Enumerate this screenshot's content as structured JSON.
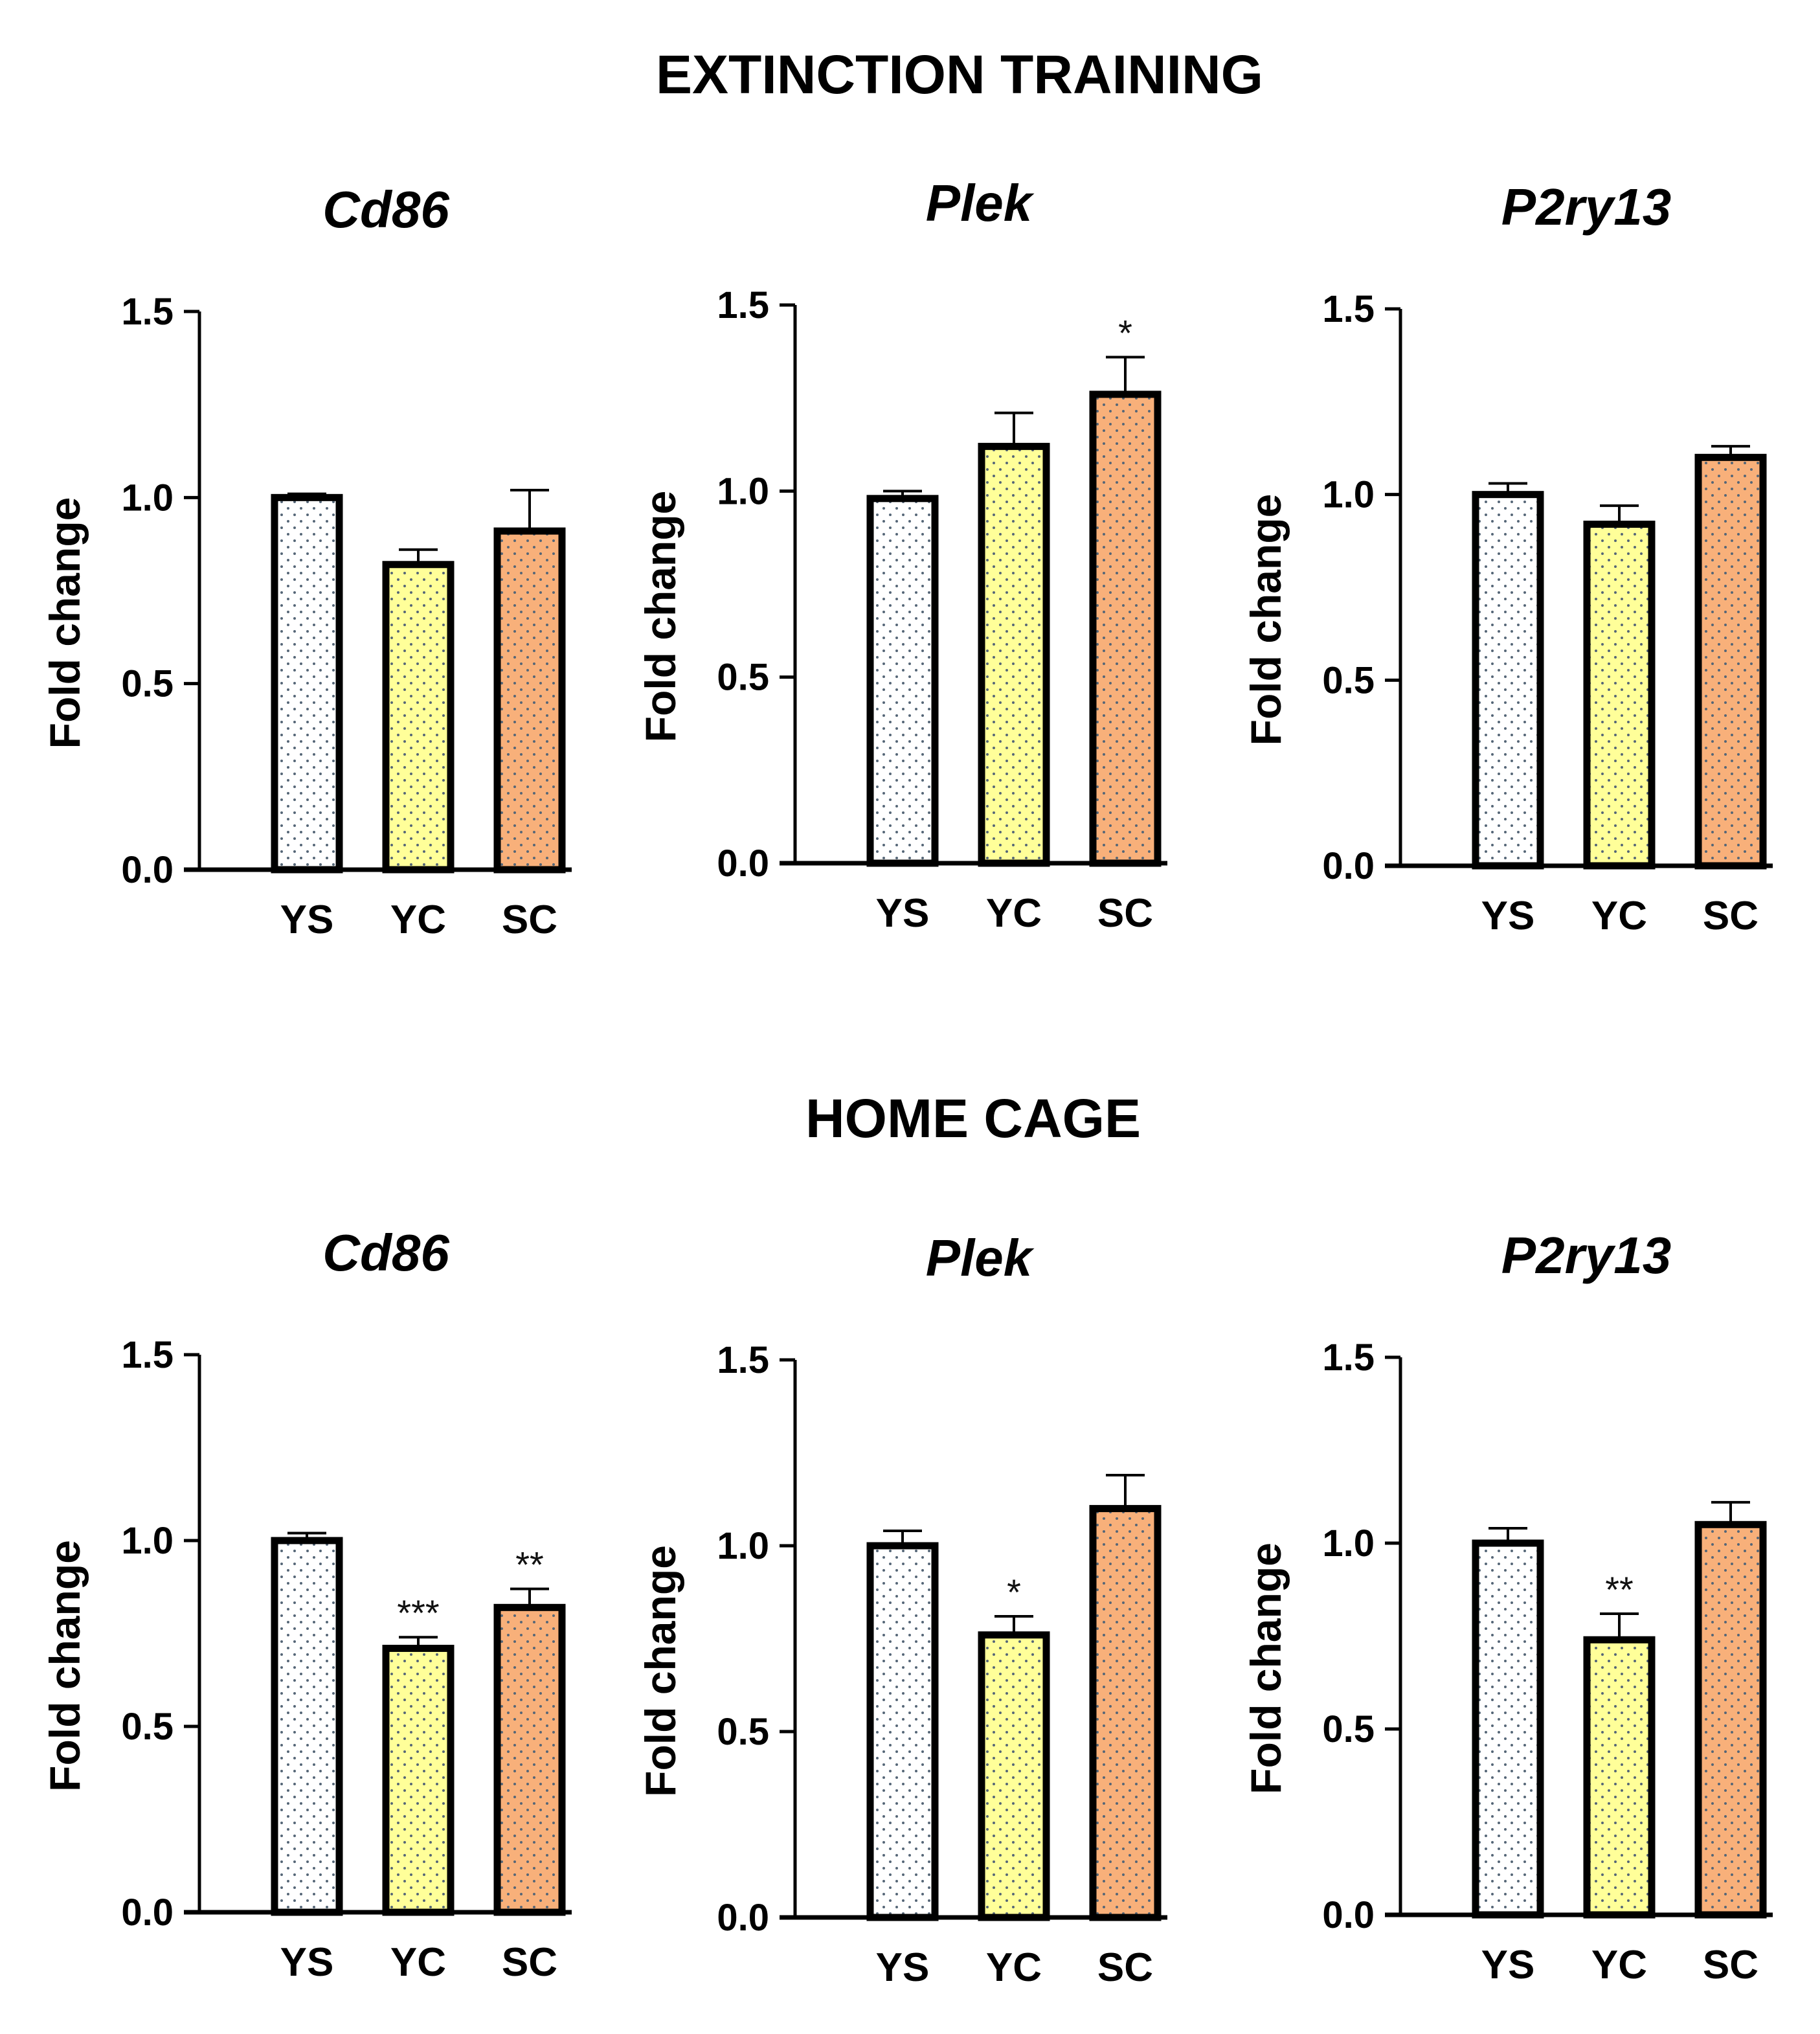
{
  "sections": [
    {
      "title": "EXTINCTION TRAINING"
    },
    {
      "title": "HOME CAGE"
    }
  ],
  "colors": {
    "YS": "#ffffff",
    "YC": "#ffff99",
    "SC": "#f8b07a",
    "dot": "#556677",
    "stroke": "#000000"
  },
  "chart_data": [
    {
      "type": "bar",
      "section": "EXTINCTION TRAINING",
      "title": "Cd86",
      "ylabel": "Fold change",
      "xlabel": "",
      "categories": [
        "YS",
        "YC",
        "SC"
      ],
      "values": [
        1.0,
        0.82,
        0.91
      ],
      "errors": [
        0.01,
        0.04,
        0.11
      ],
      "significance": [
        "",
        "",
        ""
      ],
      "ylim": [
        0,
        1.5
      ],
      "yticks": [
        "0.0",
        "0.5",
        "1.0",
        "1.5"
      ]
    },
    {
      "type": "bar",
      "section": "EXTINCTION TRAINING",
      "title": "Plek",
      "ylabel": "Fold change",
      "xlabel": "",
      "categories": [
        "YS",
        "YC",
        "SC"
      ],
      "values": [
        0.98,
        1.12,
        1.26
      ],
      "errors": [
        0.02,
        0.09,
        0.1
      ],
      "significance": [
        "",
        "",
        "*"
      ],
      "ylim": [
        0,
        1.5
      ],
      "yticks": [
        "0.0",
        "0.5",
        "1.0",
        "1.5"
      ]
    },
    {
      "type": "bar",
      "section": "EXTINCTION TRAINING",
      "title": "P2ry13",
      "ylabel": "Fold change",
      "xlabel": "",
      "categories": [
        "YS",
        "YC",
        "SC"
      ],
      "values": [
        1.0,
        0.92,
        1.1
      ],
      "errors": [
        0.03,
        0.05,
        0.03
      ],
      "significance": [
        "",
        "",
        ""
      ],
      "ylim": [
        0,
        1.5
      ],
      "yticks": [
        "0.0",
        "0.5",
        "1.0",
        "1.5"
      ]
    },
    {
      "type": "bar",
      "section": "HOME CAGE",
      "title": "Cd86",
      "ylabel": "Fold change",
      "xlabel": "",
      "categories": [
        "YS",
        "YC",
        "SC"
      ],
      "values": [
        1.0,
        0.71,
        0.82
      ],
      "errors": [
        0.02,
        0.03,
        0.05
      ],
      "significance": [
        "",
        "***",
        "**"
      ],
      "ylim": [
        0,
        1.5
      ],
      "yticks": [
        "0.0",
        "0.5",
        "1.0",
        "1.5"
      ]
    },
    {
      "type": "bar",
      "section": "HOME CAGE",
      "title": "Plek",
      "ylabel": "Fold change",
      "xlabel": "",
      "categories": [
        "YS",
        "YC",
        "SC"
      ],
      "values": [
        1.0,
        0.76,
        1.1
      ],
      "errors": [
        0.04,
        0.05,
        0.09
      ],
      "significance": [
        "",
        "*",
        ""
      ],
      "ylim": [
        0,
        1.5
      ],
      "yticks": [
        "0.0",
        "0.5",
        "1.0",
        "1.5"
      ]
    },
    {
      "type": "bar",
      "section": "HOME CAGE",
      "title": "P2ry13",
      "ylabel": "Fold change",
      "xlabel": "",
      "categories": [
        "YS",
        "YC",
        "SC"
      ],
      "values": [
        1.0,
        0.74,
        1.05
      ],
      "errors": [
        0.04,
        0.07,
        0.06
      ],
      "significance": [
        "",
        "**",
        ""
      ],
      "ylim": [
        0,
        1.5
      ],
      "yticks": [
        "0.0",
        "0.5",
        "1.0",
        "1.5"
      ]
    }
  ]
}
